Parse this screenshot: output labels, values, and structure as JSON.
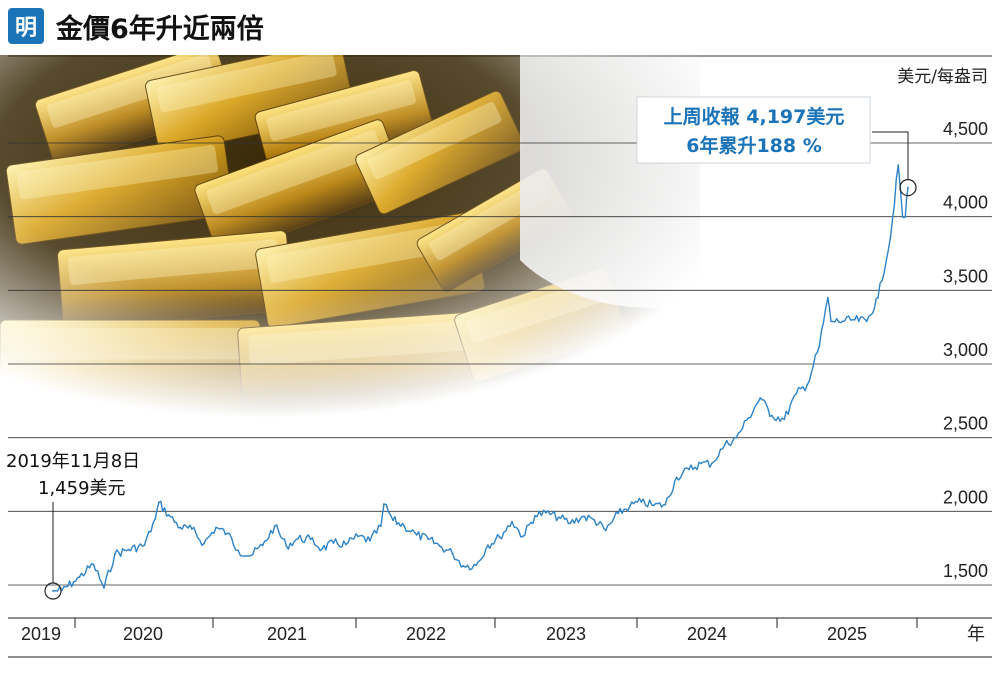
{
  "header": {
    "logo_char": "明",
    "title": "金價6年升近兩倍"
  },
  "chart_data": {
    "type": "line",
    "title": "金價6年升近兩倍",
    "unit_label": "美元/每盎司",
    "x_unit_label": "年",
    "x_categories": [
      "2019",
      "2020",
      "2021",
      "2022",
      "2023",
      "2024",
      "2025"
    ],
    "y_ticks": [
      "1,500",
      "2,000",
      "2,500",
      "3,000",
      "3,500",
      "4,000",
      "4,500"
    ],
    "y_tick_values": [
      1500,
      2000,
      2500,
      3000,
      3500,
      4000,
      4500
    ],
    "ylim": [
      1400,
      4650
    ],
    "grid": true,
    "series": [
      {
        "values_by_date": [
          [
            "2019-11-08",
            1459
          ],
          [
            "2019-12-01",
            1465
          ],
          [
            "2019-12-31",
            1520
          ],
          [
            "2020-01-15",
            1555
          ],
          [
            "2020-02-20",
            1640
          ],
          [
            "2020-03-18",
            1480
          ],
          [
            "2020-04-15",
            1710
          ],
          [
            "2020-05-20",
            1740
          ],
          [
            "2020-06-30",
            1770
          ],
          [
            "2020-07-28",
            1950
          ],
          [
            "2020-08-06",
            2060
          ],
          [
            "2020-08-31",
            1975
          ],
          [
            "2020-09-30",
            1890
          ],
          [
            "2020-10-30",
            1880
          ],
          [
            "2020-11-30",
            1780
          ],
          [
            "2020-12-31",
            1890
          ],
          [
            "2021-01-29",
            1850
          ],
          [
            "2021-02-26",
            1735
          ],
          [
            "2021-03-31",
            1700
          ],
          [
            "2021-04-30",
            1770
          ],
          [
            "2021-05-31",
            1900
          ],
          [
            "2021-06-30",
            1765
          ],
          [
            "2021-07-30",
            1815
          ],
          [
            "2021-08-31",
            1810
          ],
          [
            "2021-09-30",
            1745
          ],
          [
            "2021-10-29",
            1785
          ],
          [
            "2021-11-30",
            1775
          ],
          [
            "2021-12-31",
            1830
          ],
          [
            "2022-01-31",
            1800
          ],
          [
            "2022-02-28",
            1900
          ],
          [
            "2022-03-08",
            2050
          ],
          [
            "2022-03-31",
            1940
          ],
          [
            "2022-04-29",
            1900
          ],
          [
            "2022-05-31",
            1840
          ],
          [
            "2022-06-30",
            1810
          ],
          [
            "2022-07-29",
            1765
          ],
          [
            "2022-08-31",
            1715
          ],
          [
            "2022-09-28",
            1630
          ],
          [
            "2022-10-31",
            1635
          ],
          [
            "2022-11-30",
            1770
          ],
          [
            "2022-12-30",
            1825
          ],
          [
            "2023-01-31",
            1930
          ],
          [
            "2023-02-28",
            1830
          ],
          [
            "2023-03-31",
            1970
          ],
          [
            "2023-04-28",
            1990
          ],
          [
            "2023-05-31",
            1960
          ],
          [
            "2023-06-30",
            1920
          ],
          [
            "2023-07-31",
            1965
          ],
          [
            "2023-08-31",
            1940
          ],
          [
            "2023-09-29",
            1870
          ],
          [
            "2023-10-31",
            1985
          ],
          [
            "2023-11-30",
            2035
          ],
          [
            "2023-12-29",
            2065
          ],
          [
            "2024-01-31",
            2040
          ],
          [
            "2024-02-29",
            2045
          ],
          [
            "2024-03-29",
            2230
          ],
          [
            "2024-04-30",
            2285
          ],
          [
            "2024-05-31",
            2325
          ],
          [
            "2024-06-28",
            2325
          ],
          [
            "2024-07-31",
            2450
          ],
          [
            "2024-08-30",
            2500
          ],
          [
            "2024-09-30",
            2635
          ],
          [
            "2024-10-30",
            2770
          ],
          [
            "2024-11-29",
            2650
          ],
          [
            "2024-12-31",
            2625
          ],
          [
            "2025-01-31",
            2800
          ],
          [
            "2025-02-28",
            2860
          ],
          [
            "2025-03-31",
            3120
          ],
          [
            "2025-04-22",
            3450
          ],
          [
            "2025-04-30",
            3290
          ],
          [
            "2025-05-30",
            3290
          ],
          [
            "2025-06-30",
            3300
          ],
          [
            "2025-07-31",
            3290
          ],
          [
            "2025-08-29",
            3450
          ],
          [
            "2025-09-30",
            3860
          ],
          [
            "2025-10-20",
            4350
          ],
          [
            "2025-10-31",
            4000
          ],
          [
            "2025-11-07",
            4000
          ],
          [
            "2025-11-14",
            4197
          ]
        ]
      }
    ],
    "annotations": {
      "start": {
        "date_label": "2019年11月8日",
        "value_label": "1,459美元",
        "date": "2019-11-08",
        "value": 1459
      },
      "end": {
        "line1": "上周收報 4,197美元",
        "line2": "6年累升188 %",
        "date": "2025-11-14",
        "value": 4197
      }
    }
  },
  "colors": {
    "line": "#2e83c8",
    "accent": "#1b73b8",
    "logo_bg": "#1b73b8",
    "grid": "#333333"
  }
}
